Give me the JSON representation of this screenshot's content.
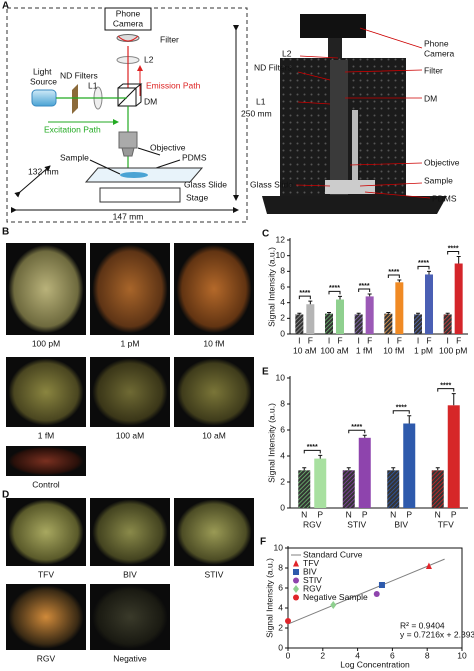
{
  "panel_labels": [
    "A",
    "B",
    "D"
  ],
  "schematic": {
    "phone_camera": [
      "Phone",
      "Camera"
    ],
    "filter": "Filter",
    "l2": "L2",
    "emission_path": "Emission Path",
    "light_source": [
      "Light",
      "Source"
    ],
    "nd_filters": "ND Filters",
    "l1": "L1",
    "dm": "DM",
    "excitation_path": "Excitation Path",
    "height": "250 mm",
    "sample": "Sample",
    "objective": "Objective",
    "pdms": "PDMS",
    "depth": "132 mm",
    "glass_slide": "Glass Slide",
    "stage": "Stage",
    "width": "147 mm"
  },
  "photo_labels": {
    "phone_camera": [
      "Phone",
      "Camera"
    ],
    "l2": "L2",
    "filter": "Filter",
    "nd_filters": "ND Filters",
    "dm": "DM",
    "l1": "L1",
    "objective": "Objective",
    "glass_slide": "Glass Slide",
    "sample": "Sample",
    "pdms": "PDMS"
  },
  "panel_b": [
    "100 pM",
    "1 pM",
    "10 fM",
    "1 fM",
    "100 aM",
    "10 aM",
    "Control"
  ],
  "panel_d": [
    "TFV",
    "BIV",
    "STIV",
    "RGV",
    "Negative"
  ],
  "chart_data": [
    {
      "type": "bar",
      "panel": "C",
      "y_label": "Signal Intensity (a.u.)",
      "categories": [
        "10 aM",
        "100 aM",
        "1 fM",
        "10 fM",
        "1 pM",
        "100 pM"
      ],
      "ylim": [
        0,
        12
      ],
      "yticks": [
        0,
        2,
        4,
        6,
        8,
        10,
        12
      ],
      "significance": [
        "****",
        "****",
        "****",
        "****",
        "****",
        "****"
      ],
      "series": [
        {
          "name": "I",
          "hatch": true,
          "colors": [
            "#9a9a9a",
            "#6fbf73",
            "#8e6bbf",
            "#f0a050",
            "#5a6fc0",
            "#d94040"
          ],
          "values": [
            2.5,
            2.6,
            2.5,
            2.6,
            2.5,
            2.5
          ],
          "errors": [
            0.15,
            0.15,
            0.15,
            0.15,
            0.15,
            0.15
          ]
        },
        {
          "name": "F",
          "colors": [
            "#b5b5b5",
            "#8fd08f",
            "#9b59b6",
            "#f08a24",
            "#4a5fb4",
            "#d4252a"
          ],
          "values": [
            3.8,
            4.4,
            4.8,
            6.6,
            7.6,
            9.0
          ],
          "errors": [
            0.4,
            0.4,
            0.3,
            0.3,
            0.4,
            0.9
          ]
        }
      ]
    },
    {
      "type": "bar",
      "panel": "E",
      "y_label": "Signal Intensity (a.u.)",
      "categories": [
        "RGV",
        "STIV",
        "BIV",
        "TFV"
      ],
      "ylim": [
        0,
        10
      ],
      "yticks": [
        0,
        2,
        4,
        6,
        8,
        10
      ],
      "significance": [
        "****",
        "****",
        "****",
        "****"
      ],
      "series": [
        {
          "name": "N",
          "hatch": true,
          "colors": [
            "#6fbf73",
            "#8e44ad",
            "#2e5aac",
            "#d62728"
          ],
          "values": [
            2.9,
            2.9,
            2.9,
            2.9
          ],
          "errors": [
            0.2,
            0.2,
            0.2,
            0.2
          ]
        },
        {
          "name": "P",
          "colors": [
            "#a8e0a0",
            "#8e44ad",
            "#2e5aac",
            "#d62728"
          ],
          "values": [
            3.8,
            5.4,
            6.5,
            7.9
          ],
          "errors": [
            0.25,
            0.2,
            0.6,
            0.9
          ]
        }
      ]
    },
    {
      "type": "scatter",
      "panel": "F",
      "x_label": "Log Concentration",
      "y_label": "Signal Intensity (a.u.)",
      "xlim": [
        0,
        10
      ],
      "xticks": [
        0,
        2,
        4,
        6,
        8,
        10
      ],
      "ylim": [
        0,
        10
      ],
      "yticks": [
        0,
        2,
        4,
        6,
        8,
        10
      ],
      "annotations": [
        "R² = 0.9404",
        "y = 0.7216x + 2.393"
      ],
      "series": [
        {
          "name": "Standard Curve",
          "marker": "line",
          "color": "#808080",
          "x": [
            0,
            9
          ],
          "values": [
            2.393,
            8.887
          ]
        },
        {
          "name": "TFV",
          "marker": "triangle",
          "color": "#e0242a",
          "x": [
            8.1
          ],
          "values": [
            8.2
          ]
        },
        {
          "name": "BIV",
          "marker": "square",
          "color": "#2e5aac",
          "x": [
            5.4
          ],
          "values": [
            6.3
          ]
        },
        {
          "name": "STIV",
          "marker": "circle",
          "color": "#8e44ad",
          "x": [
            5.1
          ],
          "values": [
            5.4
          ]
        },
        {
          "name": "RGV",
          "marker": "diamond",
          "color": "#8fd08f",
          "x": [
            2.6
          ],
          "values": [
            4.3
          ]
        },
        {
          "name": "Negative Sample",
          "marker": "circle",
          "color": "#e0242a",
          "x": [
            0
          ],
          "values": [
            2.7
          ]
        }
      ]
    }
  ]
}
